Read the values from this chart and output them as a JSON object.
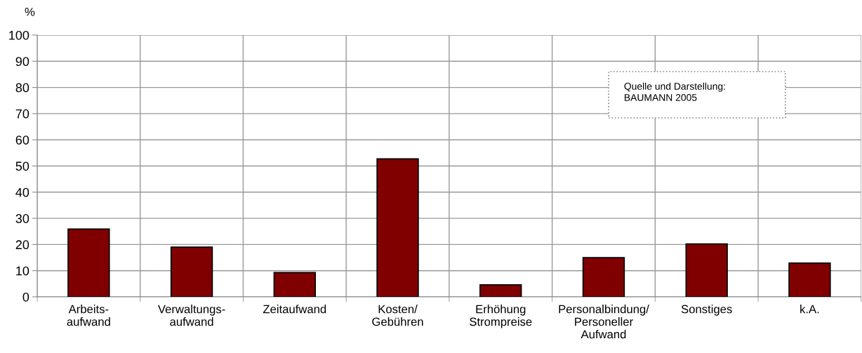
{
  "chart_data": {
    "type": "bar",
    "ylabel": "%",
    "categories": [
      "Arbeits-\naufwand",
      "Verwaltungs-\naufwand",
      "Zeitaufwand",
      "Kosten/\nGebühren",
      "Erhöhung\nStrompreise",
      "Personalbindung/\nPersoneller\nAufwand",
      "Sonstiges",
      "k.A."
    ],
    "values": [
      25.9,
      19,
      9.3,
      52.7,
      4.6,
      15,
      20.2,
      12.9
    ],
    "color": "#800000",
    "ylim": [
      0,
      100
    ],
    "yticks": [
      0,
      10,
      20,
      30,
      40,
      50,
      60,
      70,
      80,
      90,
      100
    ],
    "grid": true,
    "annotations": [
      "Quelle und Darstellung:\nBAUMANN 2005"
    ]
  }
}
